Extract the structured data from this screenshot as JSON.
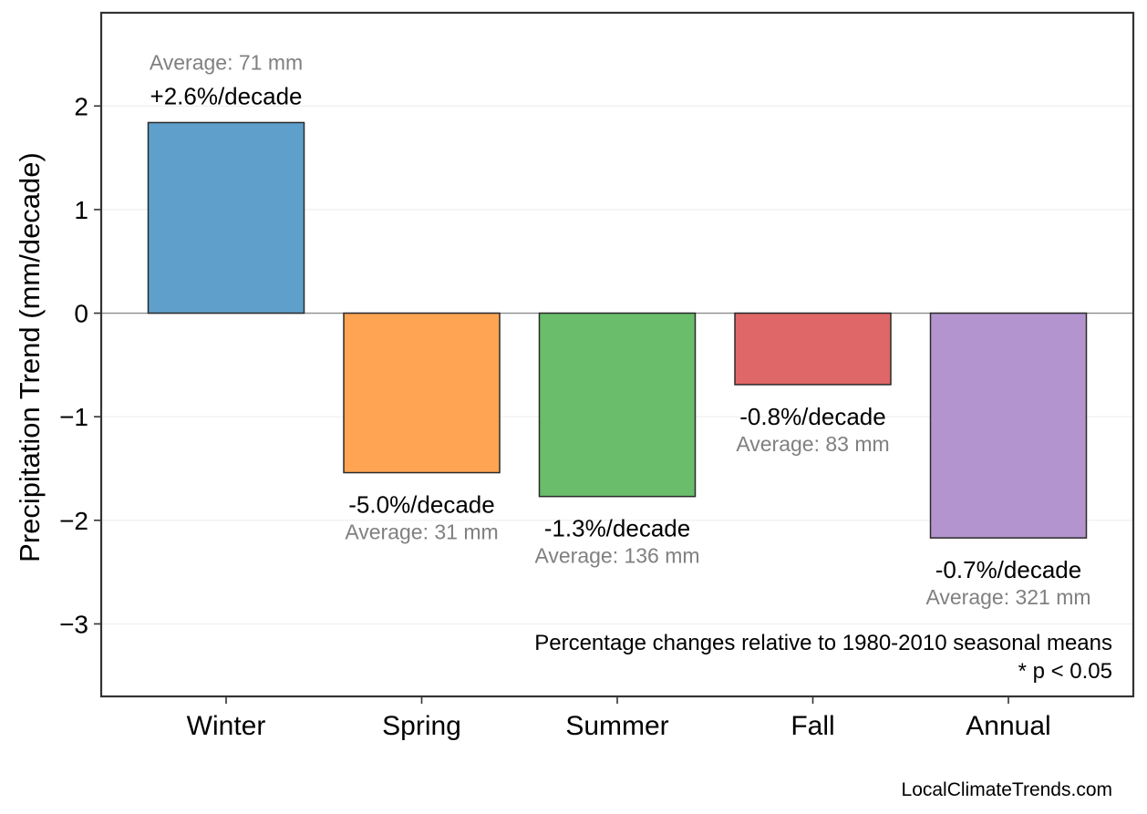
{
  "chart_data": {
    "type": "bar",
    "title": "",
    "xlabel": "",
    "ylabel": "Precipitation Trend (mm/decade)",
    "ylim": [
      -3.7,
      2.9
    ],
    "yticks": [
      2,
      1,
      0,
      -1,
      -2,
      -3
    ],
    "ytick_labels": [
      "2",
      "1",
      "0",
      "−1",
      "−2",
      "−3"
    ],
    "grid": true,
    "categories": [
      "Winter",
      "Spring",
      "Summer",
      "Fall",
      "Annual"
    ],
    "values": [
      1.84,
      -1.54,
      -1.77,
      -0.69,
      -2.17
    ],
    "colors": [
      "#5f9fcb",
      "#fea453",
      "#6abd6b",
      "#e06767",
      "#b394cf"
    ],
    "pct_labels": [
      "+2.6%/decade",
      "-5.0%/decade",
      "-1.3%/decade",
      "-0.8%/decade",
      "-0.7%/decade"
    ],
    "avg_labels": [
      "Average: 71 mm",
      "Average: 31 mm",
      "Average: 136 mm",
      "Average: 83 mm",
      "Average: 321 mm"
    ],
    "note_line1": "Percentage changes relative to 1980-2010 seasonal means",
    "note_line2": "* p < 0.05",
    "credit": "LocalClimateTrends.com"
  }
}
